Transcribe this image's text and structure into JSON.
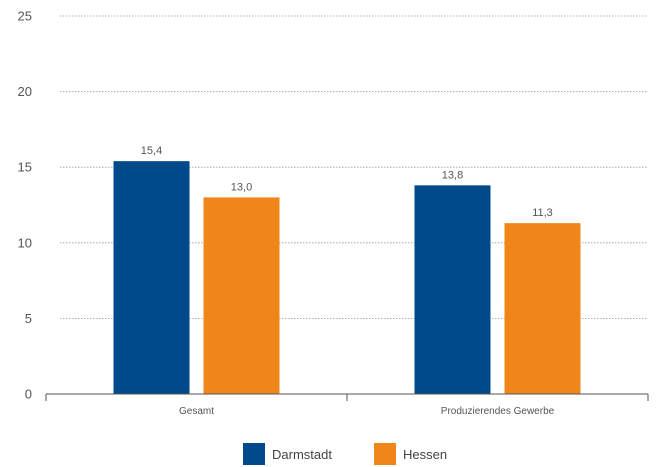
{
  "chart_data": {
    "type": "bar",
    "categories": [
      "Gesamt",
      "Produzierendes Gewerbe"
    ],
    "series": [
      {
        "name": "Darmstadt",
        "color": "#004a8c",
        "values": [
          15.4,
          13.8
        ],
        "labels": [
          "15,4",
          "13,8"
        ]
      },
      {
        "name": "Hessen",
        "color": "#f08519",
        "values": [
          13.0,
          11.3
        ],
        "labels": [
          "13,0",
          "11,3"
        ]
      }
    ],
    "ylim": [
      0,
      25
    ],
    "yticks": [
      0,
      5,
      10,
      15,
      20,
      25
    ],
    "grid": true,
    "legend_position": "bottom"
  }
}
